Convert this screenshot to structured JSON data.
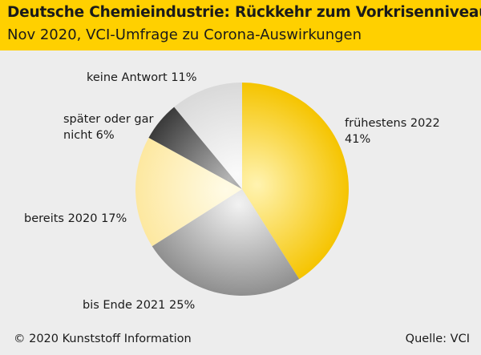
{
  "header": {
    "title": "Deutsche Chemieindustrie: Rückkehr zum Vorkrisenniveau",
    "subtitle": "Nov 2020, VCI-Umfrage zu Corona-Auswirkungen"
  },
  "chart_data": {
    "type": "pie",
    "title": "Deutsche Chemieindustrie: Rückkehr zum Vorkrisenniveau",
    "subtitle": "Nov 2020, VCI-Umfrage zu Corona-Auswirkungen",
    "unit": "%",
    "slices": [
      {
        "label_line1": "frühestens 2022",
        "label_line2": "41%",
        "value": 41,
        "color_inner": "#fff3b0",
        "color_outer": "#f5c400"
      },
      {
        "label_line1": "bis Ende 2021 25%",
        "label_line2": "",
        "value": 25,
        "color_inner": "#f2f2f2",
        "color_outer": "#8f8f8f"
      },
      {
        "label_line1": "bereits 2020 17%",
        "label_line2": "",
        "value": 17,
        "color_inner": "#fffbe6",
        "color_outer": "#fde8a0"
      },
      {
        "label_line1": "später oder gar",
        "label_line2": "nicht 6%",
        "value": 6,
        "color_inner": "#b5b5b5",
        "color_outer": "#3a3a3a"
      },
      {
        "label_line1": "keine Antwort 11%",
        "label_line2": "",
        "value": 11,
        "color_inner": "#fafafa",
        "color_outer": "#d9d9d9"
      }
    ]
  },
  "footer": {
    "copyright": "© 2020 Kunststoff Information",
    "source": "Quelle: VCI"
  }
}
